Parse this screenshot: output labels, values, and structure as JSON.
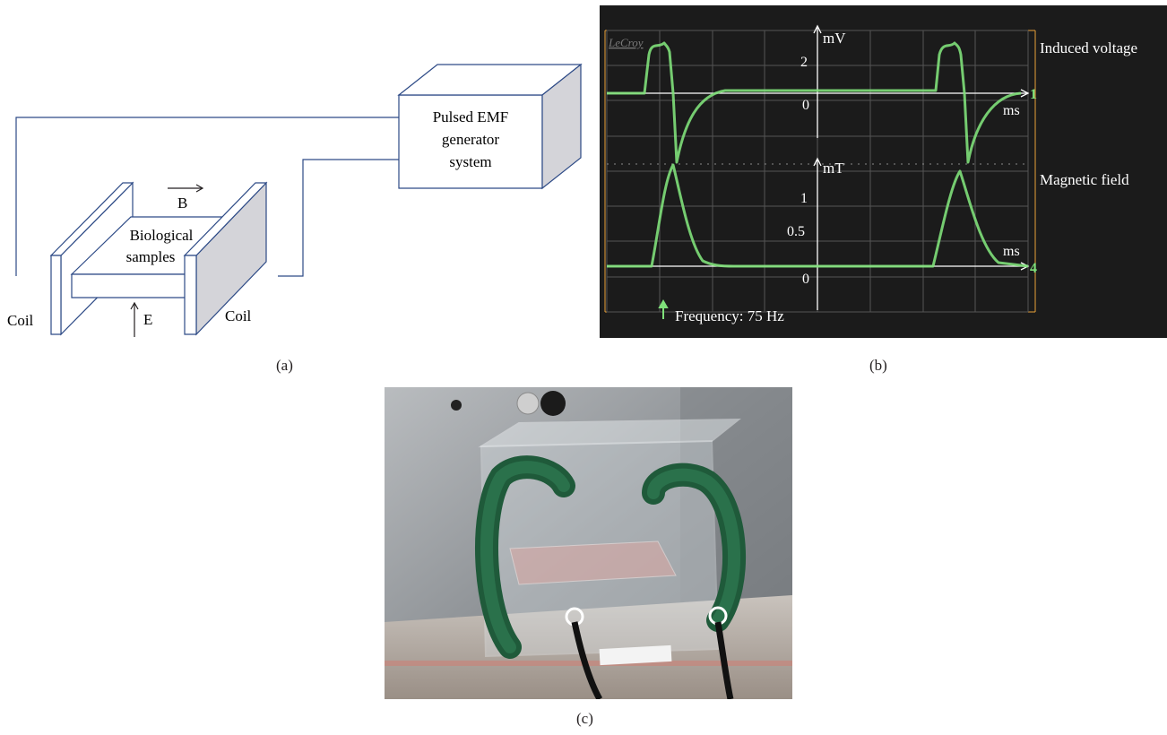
{
  "panel_a": {
    "generator_label_lines": [
      "Pulsed EMF",
      "generator",
      "system"
    ],
    "samples_label_lines": [
      "Biological",
      "samples"
    ],
    "field_b": "B",
    "field_e": "E",
    "coil_left": "Coil",
    "coil_right": "Coil",
    "caption": "(a)"
  },
  "panel_b": {
    "brand": "LeCroy",
    "induced_voltage_label": "Induced voltage",
    "magnetic_field_label": "Magnetic field",
    "top_unit": "mV",
    "bottom_unit": "mT",
    "time_unit_top": "ms",
    "time_unit_bottom": "ms",
    "top_ticks": [
      "2",
      "0"
    ],
    "bottom_ticks": [
      "1",
      "0.5",
      "0"
    ],
    "channel_top": "1",
    "channel_bottom": "4",
    "frequency_text": "Frequency: 75 Hz",
    "caption": "(b)",
    "colors": {
      "trace": "#7fe07a",
      "screen": "#1b1b1b",
      "marker": "#e8a23a"
    }
  },
  "panel_c": {
    "photo_icon": "coil-apparatus-photo",
    "caption": "(c)"
  }
}
